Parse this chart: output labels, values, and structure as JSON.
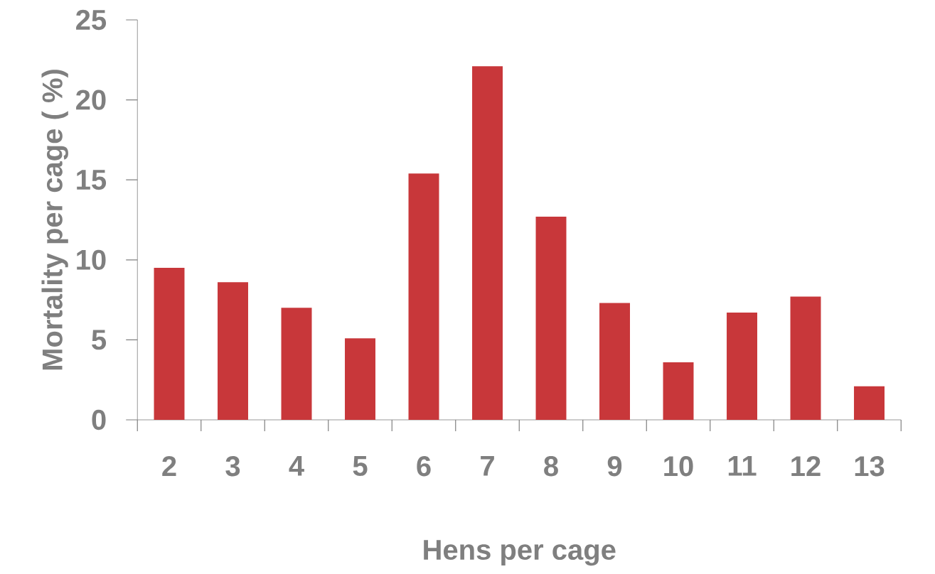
{
  "chart_data": {
    "type": "bar",
    "xlabel": "Hens per cage",
    "ylabel": "Mortality per cage ( %)",
    "categories": [
      "2",
      "3",
      "4",
      "5",
      "6",
      "7",
      "8",
      "9",
      "10",
      "11",
      "12",
      "13"
    ],
    "values": [
      9.5,
      8.6,
      7.0,
      5.1,
      15.4,
      22.1,
      12.7,
      7.3,
      3.6,
      6.7,
      7.7,
      2.1
    ],
    "color": "#c8373a",
    "ylim": [
      0,
      25
    ],
    "yticks": [
      0,
      5,
      10,
      15,
      20,
      25
    ],
    "grid": false
  }
}
